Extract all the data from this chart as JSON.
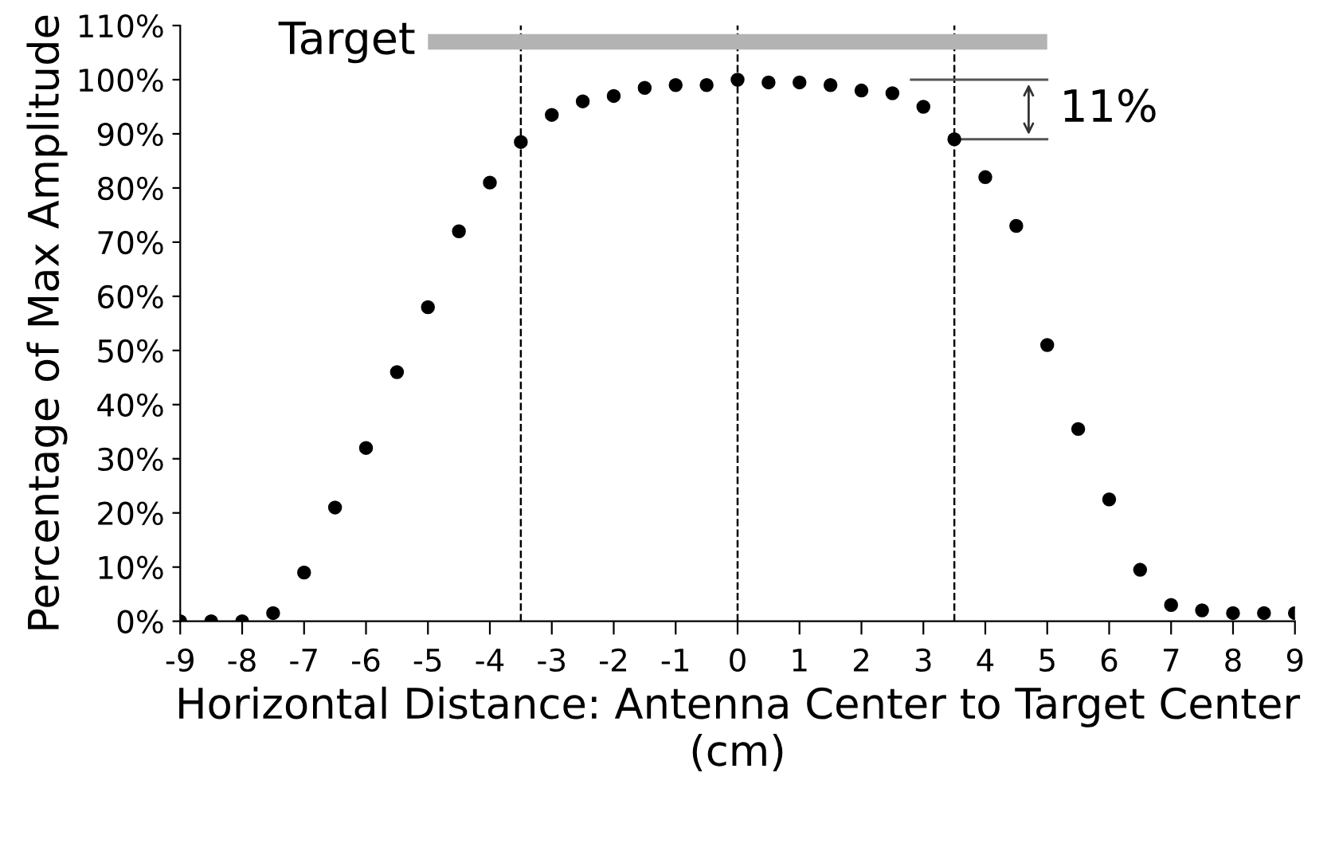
{
  "chart_data": {
    "type": "scatter",
    "xlabel": "Horizontal Distance: Antenna Center to Target Center (cm)",
    "ylabel": "Percentage of Max Amplitude",
    "series": [
      {
        "color": "#000000",
        "marker": "circle",
        "x": [
          -9,
          -8.5,
          -8,
          -7.5,
          -7,
          -6.5,
          -6,
          -5.5,
          -5,
          -4.5,
          -4,
          -3.5,
          -3,
          -2.5,
          -2,
          -1.5,
          -1,
          -0.5,
          0,
          0.5,
          1,
          1.5,
          2,
          2.5,
          3,
          3.5,
          4,
          4.5,
          5,
          5.5,
          6,
          6.5,
          7,
          7.5,
          8,
          8.5,
          9
        ],
        "values": [
          0,
          0,
          0,
          1.5,
          9,
          21,
          32,
          46,
          58,
          72,
          81,
          88.5,
          93.5,
          96,
          97,
          98.5,
          99,
          99,
          100,
          99.5,
          99.5,
          99,
          98,
          97.5,
          95,
          89,
          82,
          73,
          51,
          35.5,
          22.5,
          9.5,
          3,
          2,
          1.5,
          1.5,
          1.5
        ]
      },
      {
        "type": "line",
        "name": "Target",
        "color": "#b3b3b3",
        "x": [
          -5,
          5
        ],
        "values": [
          107,
          107
        ]
      }
    ],
    "ref_lines": [
      {
        "axis": "x",
        "value": -3.5,
        "color": "#000000",
        "line_style": "dashed"
      },
      {
        "axis": "x",
        "value": 0,
        "color": "#000000",
        "line_style": "dashed"
      },
      {
        "axis": "x",
        "value": 3.5,
        "color": "#000000",
        "line_style": "dashed"
      }
    ],
    "annotations": [
      {
        "text": "11%",
        "x": 3.5,
        "y": 89
      }
    ],
    "xlim": [
      -9,
      9
    ],
    "xticks": [
      -9,
      -8,
      -7,
      -6,
      -5,
      -4,
      -3,
      -2,
      -1,
      0,
      1,
      2,
      3,
      4,
      5,
      6,
      7,
      8,
      9
    ],
    "ylim": [
      0,
      110
    ],
    "yticks": [
      {
        "value": 0,
        "label": "0%"
      },
      {
        "value": 10,
        "label": "10%"
      },
      {
        "value": 20,
        "label": "20%"
      },
      {
        "value": 30,
        "label": "30%"
      },
      {
        "value": 40,
        "label": "40%"
      },
      {
        "value": 50,
        "label": "50%"
      },
      {
        "value": 60,
        "label": "60%"
      },
      {
        "value": 70,
        "label": "70%"
      },
      {
        "value": 80,
        "label": "80%"
      },
      {
        "value": 90,
        "label": "90%"
      },
      {
        "value": 100,
        "label": "100%"
      },
      {
        "value": 110,
        "label": "110%"
      }
    ],
    "grid": false,
    "legend": false
  }
}
